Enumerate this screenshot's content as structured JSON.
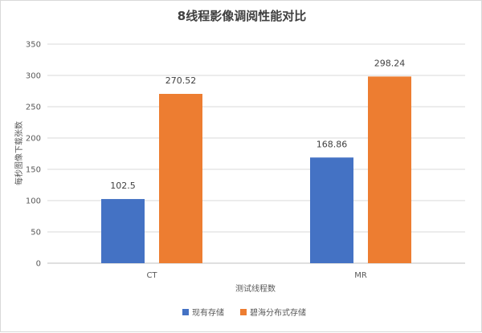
{
  "chart_data": {
    "type": "bar",
    "title": "8线程影像调阅性能对比",
    "xlabel": "测试线程数",
    "ylabel": "每秒图像下载张数",
    "categories": [
      "CT",
      "MR"
    ],
    "ylim": [
      0,
      350
    ],
    "yticks": [
      0,
      50,
      100,
      150,
      200,
      250,
      300,
      350
    ],
    "grid": true,
    "legend_position": "bottom",
    "series": [
      {
        "name": "现有存储",
        "values": [
          102.5,
          168.86
        ],
        "labels": [
          "102.5",
          "168.86"
        ],
        "color": "#4472c4"
      },
      {
        "name": "碧海分布式存储",
        "values": [
          270.52,
          298.24
        ],
        "labels": [
          "270.52",
          "298.24"
        ],
        "color": "#ed7d31"
      }
    ]
  }
}
